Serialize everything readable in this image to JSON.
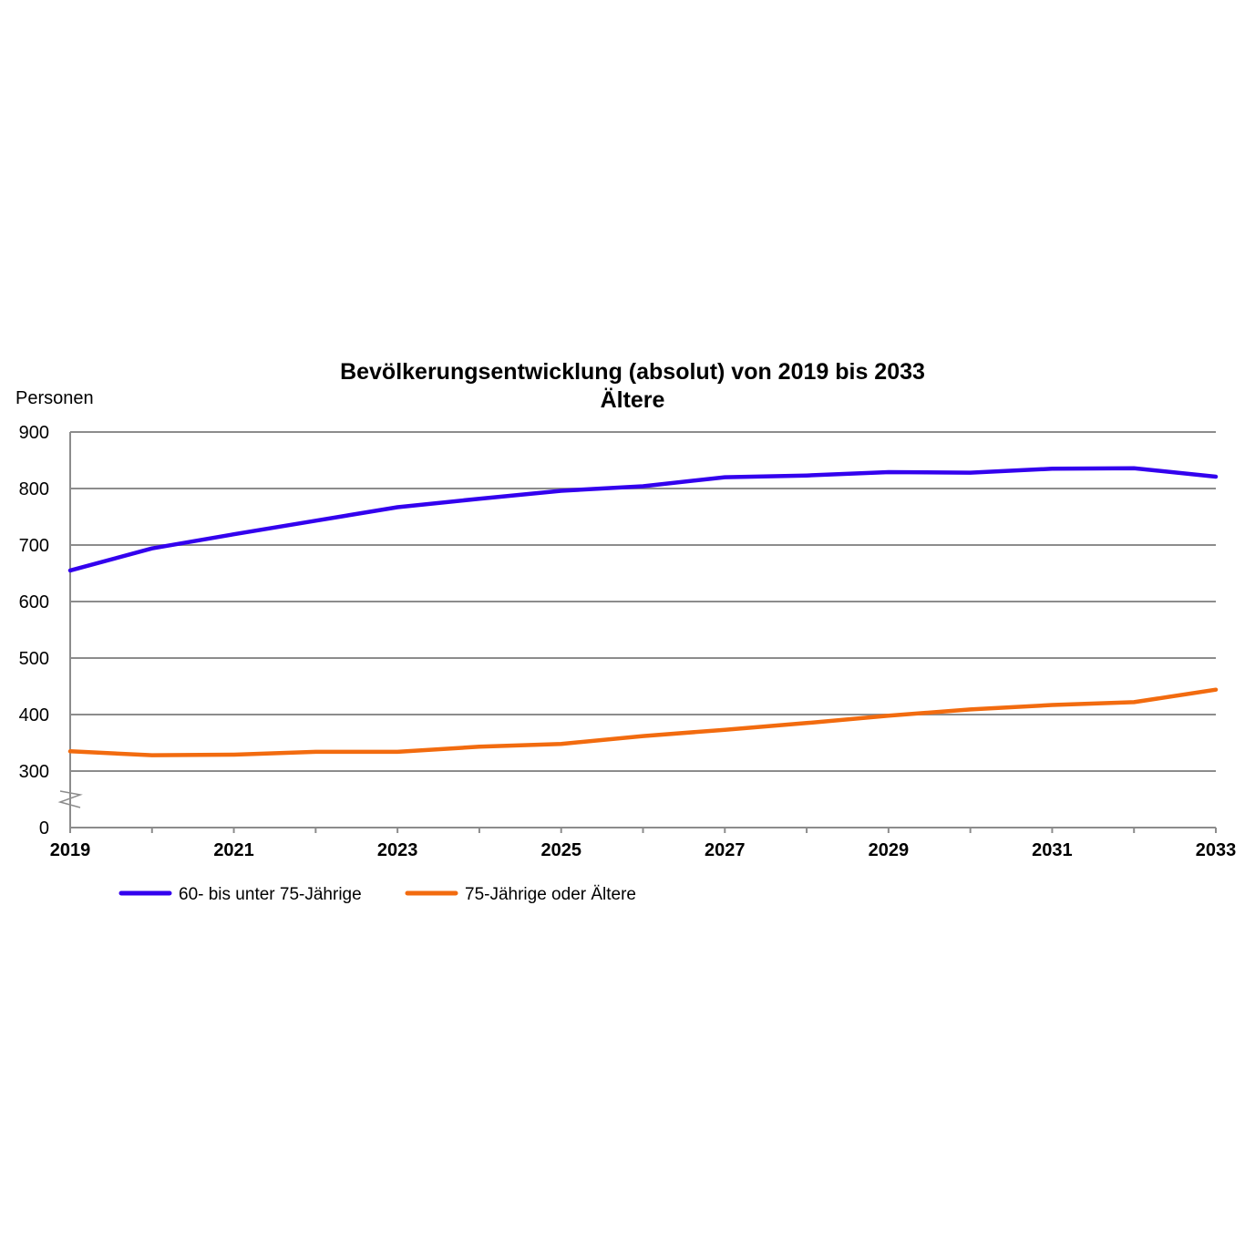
{
  "chart_data": {
    "type": "line",
    "title": "Bevölkerungsentwicklung (absolut) von 2019 bis 2033",
    "subtitle": "Ältere",
    "ylabel": "Personen",
    "xlabel": "",
    "x": [
      2019,
      2020,
      2021,
      2022,
      2023,
      2024,
      2025,
      2026,
      2027,
      2028,
      2029,
      2030,
      2031,
      2032,
      2033
    ],
    "x_tick_labels": [
      "2019",
      "2021",
      "2023",
      "2025",
      "2027",
      "2029",
      "2031",
      "2033"
    ],
    "y_tick_labels": [
      "0",
      "300",
      "400",
      "500",
      "600",
      "700",
      "800",
      "900"
    ],
    "ylim": [
      0,
      900
    ],
    "y_axis_break": "between 0 and 300",
    "grid": true,
    "legend_position": "bottom-left",
    "series": [
      {
        "name": "60- bis unter 75-Jährige",
        "color": "#3300ee",
        "values": [
          655,
          694,
          719,
          743,
          767,
          782,
          796,
          804,
          820,
          823,
          829,
          828,
          835,
          836,
          821
        ]
      },
      {
        "name": "75-Jährige oder Ältere",
        "color": "#f26b0f",
        "values": [
          335,
          328,
          329,
          334,
          334,
          343,
          348,
          362,
          373,
          385,
          398,
          409,
          417,
          422,
          444
        ]
      }
    ]
  }
}
